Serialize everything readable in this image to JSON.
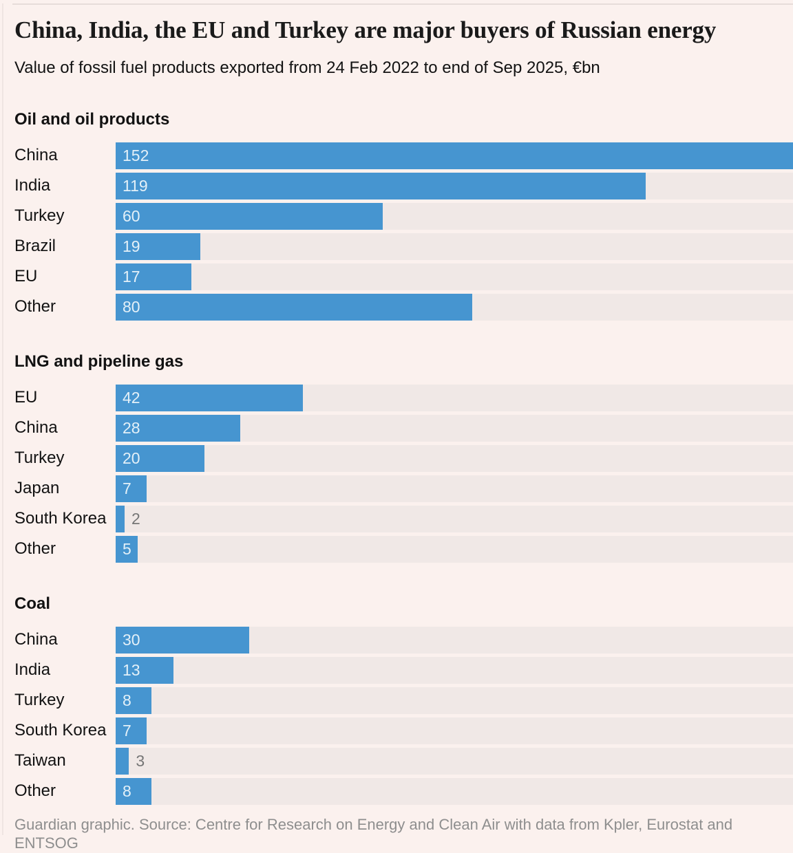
{
  "header": {
    "title": "China, India, the EU and Turkey are major buyers of Russian energy",
    "subtitle": "Value of fossil fuel products exported from 24 Feb 2022 to end of Sep 2025, €bn"
  },
  "footer": {
    "credit": "Guardian graphic. Source: Centre for Research on Energy and Clean Air with data from Kpler, Eurostat and ENTSOG"
  },
  "colors": {
    "bar": "#4695d0",
    "track": "#f0e8e6",
    "background": "#fbf1ee",
    "value_inside": "#e3f0f8",
    "value_outside": "#767676"
  },
  "chart_data": [
    {
      "type": "bar",
      "orientation": "horizontal",
      "title": "Oil and oil products",
      "unit": "€bn",
      "categories": [
        "China",
        "India",
        "Turkey",
        "Brazil",
        "EU",
        "Other"
      ],
      "values": [
        152,
        119,
        60,
        19,
        17,
        80
      ],
      "xlim": [
        0,
        152
      ],
      "grid": false,
      "legend": false
    },
    {
      "type": "bar",
      "orientation": "horizontal",
      "title": "LNG and pipeline gas",
      "unit": "€bn",
      "categories": [
        "EU",
        "China",
        "Turkey",
        "Japan",
        "South Korea",
        "Other"
      ],
      "values": [
        42,
        28,
        20,
        7,
        2,
        5
      ],
      "xlim": [
        0,
        152
      ],
      "grid": false,
      "legend": false
    },
    {
      "type": "bar",
      "orientation": "horizontal",
      "title": "Coal",
      "unit": "€bn",
      "categories": [
        "China",
        "India",
        "Turkey",
        "South Korea",
        "Taiwan",
        "Other"
      ],
      "values": [
        30,
        13,
        8,
        7,
        3,
        8
      ],
      "xlim": [
        0,
        152
      ],
      "grid": false,
      "legend": false
    }
  ]
}
